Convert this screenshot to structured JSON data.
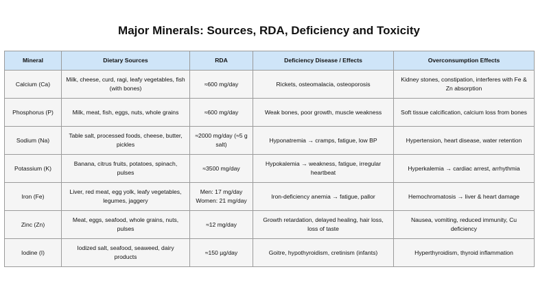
{
  "title": "Major Minerals: Sources, RDA, Deficiency and Toxicity",
  "colors": {
    "header_bg": "#cfe5f8",
    "cell_bg": "#f5f5f5",
    "border": "#9a9a9a"
  },
  "table": {
    "headers": [
      "Mineral",
      "Dietary Sources",
      "RDA",
      "Deficiency Disease / Effects",
      "Overconsumption Effects"
    ],
    "rows": [
      [
        "Calcium (Ca)",
        "Milk, cheese, curd, ragi, leafy vegetables, fish (with bones)",
        "≈600 mg/day",
        "Rickets, osteomalacia, osteoporosis",
        "Kidney stones, constipation, interferes with Fe & Zn absorption"
      ],
      [
        "Phosphorus (P)",
        "Milk, meat, fish, eggs, nuts, whole grains",
        "≈600 mg/day",
        "Weak bones, poor growth, muscle weakness",
        "Soft tissue calcification, calcium loss from bones"
      ],
      [
        "Sodium (Na)",
        "Table salt, processed foods, cheese, butter, pickles",
        "≈2000 mg/day (≈5 g salt)",
        "Hyponatremia → cramps, fatigue, low BP",
        "Hypertension, heart disease, water retention"
      ],
      [
        "Potassium (K)",
        "Banana, citrus fruits, potatoes, spinach, pulses",
        "≈3500 mg/day",
        "Hypokalemia → weakness, fatigue, irregular heartbeat",
        "Hyperkalemia → cardiac arrest, arrhythmia"
      ],
      [
        "Iron (Fe)",
        "Liver, red meat, egg yolk, leafy vegetables, legumes, jaggery",
        "Men: 17 mg/day\nWomen: 21 mg/day",
        "Iron-deficiency anemia → fatigue, pallor",
        "Hemochromatosis → liver & heart damage"
      ],
      [
        "Zinc (Zn)",
        "Meat, eggs, seafood, whole grains, nuts, pulses",
        "≈12 mg/day",
        "Growth retardation, delayed healing, hair loss, loss of taste",
        "Nausea, vomiting, reduced immunity, Cu deficiency"
      ],
      [
        "Iodine (I)",
        "Iodized salt, seafood, seaweed, dairy products",
        "≈150 µg/day",
        "Goitre, hypothyroidism, cretinism (infants)",
        "Hyperthyroidism, thyroid inflammation"
      ]
    ]
  }
}
